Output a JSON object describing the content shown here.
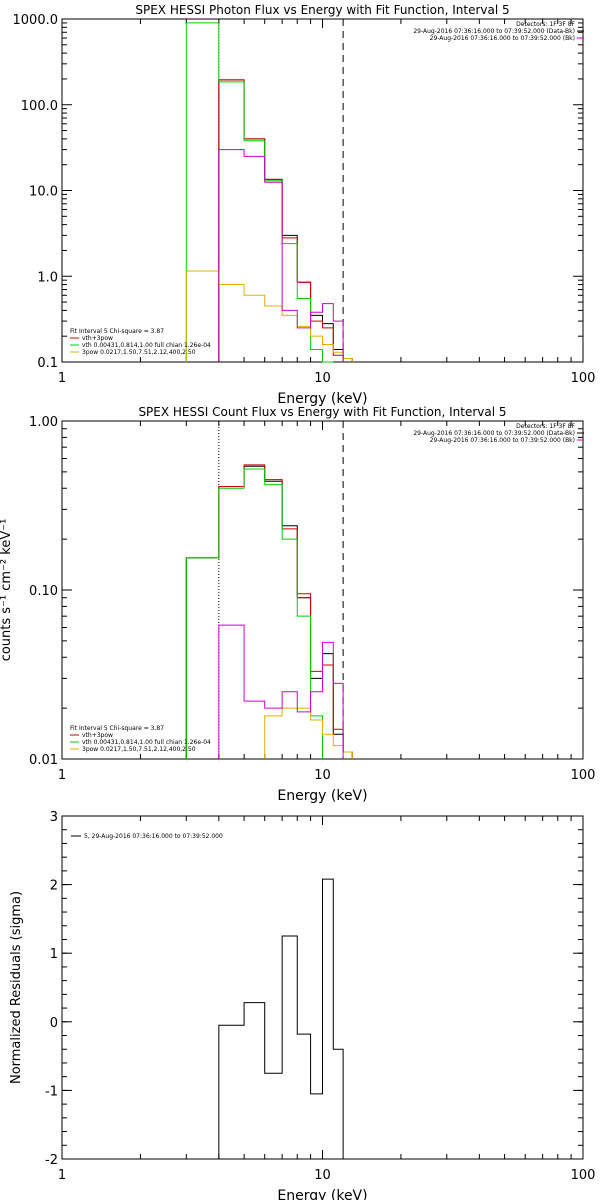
{
  "chart_data": [
    {
      "type": "step",
      "title": "SPEX HESSI Photon Flux vs Energy with Fit Function, Interval 5",
      "xlabel": "Energy (keV)",
      "ylabel": "",
      "xscale": "log",
      "yscale": "log",
      "xlim": [
        1,
        100
      ],
      "ylim": [
        0.1,
        1000
      ],
      "xticks": [
        1,
        10,
        100
      ],
      "xtick_labels": [
        "1",
        "10",
        "100"
      ],
      "yticks": [
        0.1,
        1,
        10,
        100,
        1000
      ],
      "ytick_labels": [
        "0.1",
        "1.0",
        "10.0",
        "100.0",
        "1000.0"
      ],
      "dotted_line_x": 4,
      "dashed_line_x": 12,
      "header_right": [
        "Detectors: 1F 3F 8F",
        "29-Aug-2016 07:36:16.000 to 07:39:52.000 (Data-Bk)",
        "29-Aug-2016 07:36:16.000 to 07:39:52.000 (Bk)"
      ],
      "header_right_colors": [
        "#000000",
        "#000000",
        "#d000d0"
      ],
      "legend_title": "Fit Interval 5   Chi-square = 3.87",
      "legend": [
        {
          "label": "vth+3pow",
          "color": "#d00000"
        },
        {
          "label": "vth 0.00431,0.814,1.00   full chian 1.26e-04",
          "color": "#00d000"
        },
        {
          "label": "3pow 0.0217,1.50,7.51,2.12,400,2.50",
          "color": "#e0b000"
        }
      ],
      "edges": [
        3,
        4,
        5,
        6,
        7,
        8,
        9,
        10,
        11,
        12,
        13
      ],
      "series": [
        {
          "name": "Data-Bk",
          "color": "#000000",
          "values": [
            null,
            195,
            40,
            13.5,
            3.0,
            0.85,
            0.35,
            0.28,
            0.14,
            0.11
          ]
        },
        {
          "name": "vth+3pow",
          "color": "#d00000",
          "values": [
            null,
            195,
            40,
            13.5,
            2.8,
            0.85,
            0.3,
            0.25,
            0.12,
            0.11
          ]
        },
        {
          "name": "vth",
          "color": "#00d000",
          "values": [
            900,
            185,
            38,
            13,
            2.4,
            0.55,
            0.14,
            0.1,
            null,
            null
          ]
        },
        {
          "name": "3pow",
          "color": "#e0b000",
          "values": [
            1.15,
            0.8,
            0.6,
            0.45,
            0.35,
            0.26,
            0.2,
            0.16,
            0.13,
            0.11
          ]
        },
        {
          "name": "Bk",
          "color": "#d000d0",
          "values": [
            null,
            30,
            25,
            12.5,
            0.4,
            0.25,
            0.38,
            0.48,
            0.3,
            null
          ]
        }
      ]
    },
    {
      "type": "step",
      "title": "SPEX HESSI Count Flux vs Energy with Fit Function, Interval 5",
      "xlabel": "Energy (keV)",
      "ylabel": "counts s⁻¹ cm⁻² keV⁻¹",
      "xscale": "log",
      "yscale": "log",
      "xlim": [
        1,
        100
      ],
      "ylim": [
        0.01,
        1
      ],
      "xticks": [
        1,
        10,
        100
      ],
      "xtick_labels": [
        "1",
        "10",
        "100"
      ],
      "yticks": [
        0.01,
        0.1,
        1
      ],
      "ytick_labels": [
        "0.01",
        "0.10",
        "1.00"
      ],
      "dotted_line_x": 4,
      "dashed_line_x": 12,
      "header_right": [
        "Detectors: 1F 3F 8F",
        "29-Aug-2016 07:36:16.000 to 07:39:52.000 (Data-Bk)",
        "29-Aug-2016 07:36:16.000 to 07:39:52.000 (Bk)"
      ],
      "header_right_colors": [
        "#000000",
        "#000000",
        "#d000d0"
      ],
      "legend_title": "Fit Interval 5   Chi-square = 3.87",
      "legend": [
        {
          "label": "vth+3pow",
          "color": "#d00000"
        },
        {
          "label": "vth 0.00431,0.814,1.00   full chian 1.26e-04",
          "color": "#00d000"
        },
        {
          "label": "3pow 0.0217,1.50,7.51,2.12,400,2.50",
          "color": "#e0b000"
        }
      ],
      "edges": [
        3,
        4,
        5,
        6,
        7,
        8,
        9,
        10,
        11,
        12,
        13
      ],
      "series": [
        {
          "name": "Data-Bk",
          "color": "#000000",
          "values": [
            0.155,
            0.41,
            0.54,
            0.44,
            0.24,
            0.09,
            0.03,
            0.042,
            0.014,
            0.011
          ]
        },
        {
          "name": "vth+3pow",
          "color": "#d00000",
          "values": [
            0.155,
            0.41,
            0.55,
            0.45,
            0.23,
            0.095,
            0.033,
            0.036,
            0.015,
            0.011
          ]
        },
        {
          "name": "vth",
          "color": "#00d000",
          "values": [
            0.155,
            0.4,
            0.52,
            0.42,
            0.2,
            0.07,
            0.018,
            null,
            null,
            null
          ]
        },
        {
          "name": "3pow",
          "color": "#e0b000",
          "values": [
            null,
            null,
            null,
            0.018,
            0.02,
            0.02,
            0.017,
            0.014,
            0.012,
            0.011
          ]
        },
        {
          "name": "Bk",
          "color": "#d000d0",
          "values": [
            null,
            0.062,
            0.022,
            0.02,
            0.025,
            0.019,
            0.025,
            0.049,
            0.028,
            null
          ]
        }
      ]
    },
    {
      "type": "step",
      "title": "",
      "xlabel": "Energy (keV)",
      "ylabel": "Normalized Residuals (sigma)",
      "xscale": "log",
      "yscale": "linear",
      "xlim": [
        1,
        100
      ],
      "ylim": [
        -2,
        3
      ],
      "xticks": [
        1,
        10,
        100
      ],
      "xtick_labels": [
        "1",
        "10",
        "100"
      ],
      "yticks": [
        -2,
        -1,
        0,
        1,
        2,
        3
      ],
      "ytick_labels": [
        "-2",
        "-1",
        "0",
        "1",
        "2",
        "3"
      ],
      "legend": [
        {
          "label": "5, 29-Aug-2016 07:36:16.000 to 07:39:52.000",
          "color": "#000000"
        }
      ],
      "edges": [
        4,
        5,
        6,
        7,
        8,
        9,
        10,
        11,
        12
      ],
      "series": [
        {
          "name": "residuals",
          "color": "#000000",
          "values": [
            -0.05,
            0.28,
            -0.75,
            1.25,
            -0.18,
            -1.05,
            2.08,
            -0.4
          ]
        }
      ]
    }
  ]
}
